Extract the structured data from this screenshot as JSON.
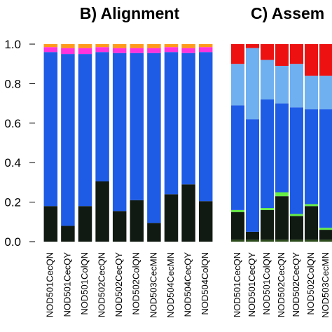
{
  "chart_data": [
    {
      "type": "bar",
      "stacked": true,
      "title": "B) Alignment",
      "categories": [
        "NOD501CecQN",
        "NOD501CecQY",
        "NOD501ColQN",
        "NOD502CecQN",
        "NOD502CecQY",
        "NOD502ColQN",
        "NOD503CecMN",
        "NOD504CecMN",
        "NOD504CecQY",
        "NOD504ColQN"
      ],
      "series": [
        {
          "color": "#111a12",
          "values": [
            0.18,
            0.08,
            0.18,
            0.305,
            0.155,
            0.21,
            0.095,
            0.24,
            0.29,
            0.205
          ]
        },
        {
          "color": "#1f5ce6",
          "values": [
            0.78,
            0.87,
            0.77,
            0.655,
            0.8,
            0.745,
            0.86,
            0.72,
            0.665,
            0.755
          ]
        },
        {
          "color": "#ff33dd",
          "values": [
            0.025,
            0.03,
            0.03,
            0.025,
            0.025,
            0.025,
            0.025,
            0.025,
            0.025,
            0.025
          ]
        },
        {
          "color": "#ff9a1a",
          "values": [
            0.015,
            0.02,
            0.02,
            0.015,
            0.02,
            0.02,
            0.02,
            0.015,
            0.02,
            0.015
          ]
        }
      ],
      "ylim": [
        0,
        1
      ],
      "yticks": [
        {
          "value": 0,
          "label": "0.0"
        },
        0.2,
        0.4,
        0.6,
        0.8,
        {
          "value": 1,
          "label": "1.0"
        }
      ]
    },
    {
      "type": "bar",
      "stacked": true,
      "title": "C) Assem",
      "categories": [
        "NOD501CecQN",
        "NOD501CecQY",
        "NOD501ColQN",
        "NOD502CecQN",
        "NOD502CecQY",
        "NOD502ColQN",
        "NOD503CecMN"
      ],
      "series": [
        {
          "color": "#2a4a1a",
          "values": [
            0.01,
            0.01,
            0.01,
            0.01,
            0.01,
            0.01,
            0.01
          ]
        },
        {
          "color": "#111a12",
          "values": [
            0.14,
            0.04,
            0.15,
            0.22,
            0.12,
            0.17,
            0.05
          ]
        },
        {
          "color": "#66ee44",
          "values": [
            0.01,
            0.0,
            0.01,
            0.02,
            0.01,
            0.01,
            0.01
          ]
        },
        {
          "color": "#1f5ce6",
          "values": [
            0.53,
            0.57,
            0.55,
            0.45,
            0.54,
            0.48,
            0.6
          ]
        },
        {
          "color": "#6fb0f0",
          "values": [
            0.21,
            0.36,
            0.2,
            0.19,
            0.22,
            0.17,
            0.17
          ]
        },
        {
          "color": "#ee1111",
          "values": [
            0.1,
            0.02,
            0.08,
            0.11,
            0.1,
            0.16,
            0.16
          ]
        }
      ],
      "ylim": [
        0,
        1
      ]
    }
  ]
}
